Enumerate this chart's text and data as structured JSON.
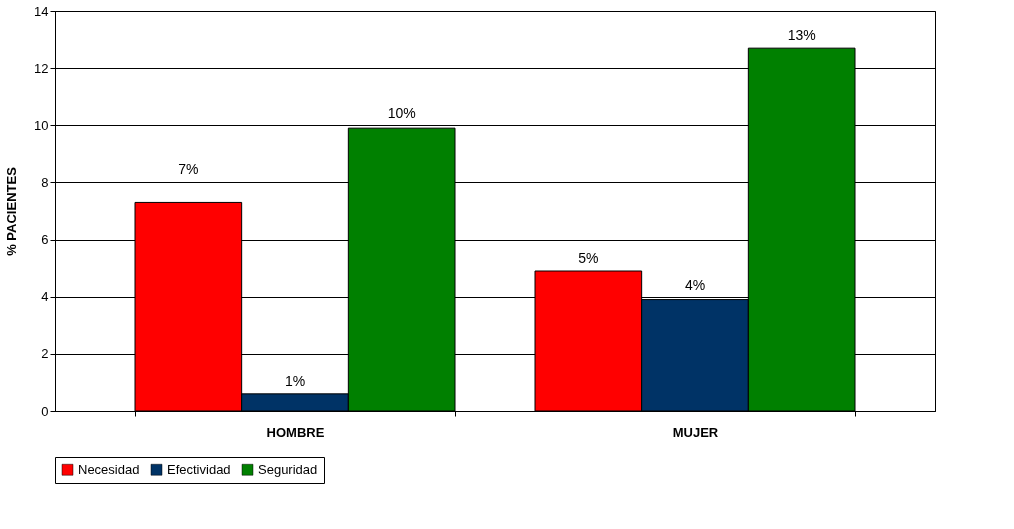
{
  "chart_data": {
    "type": "bar",
    "ylabel": "% PACIENTES",
    "categories": [
      "HOMBRE",
      "MUJER"
    ],
    "series": [
      {
        "name": "Necesidad",
        "color": "#ff0000",
        "values": [
          7.3,
          4.9
        ],
        "value_labels": [
          "7%",
          "5%"
        ]
      },
      {
        "name": "Efectividad",
        "color": "#003366",
        "values": [
          0.6,
          3.9
        ],
        "value_labels": [
          "1%",
          "4%"
        ]
      },
      {
        "name": "Seguridad",
        "color": "#008000",
        "values": [
          9.9,
          12.7
        ],
        "value_labels": [
          "10%",
          "13%"
        ]
      }
    ],
    "ylim": [
      0,
      14
    ],
    "yticks": [
      0,
      2,
      4,
      6,
      8,
      10,
      12,
      14
    ],
    "grid": "y",
    "legend": "bottom"
  }
}
